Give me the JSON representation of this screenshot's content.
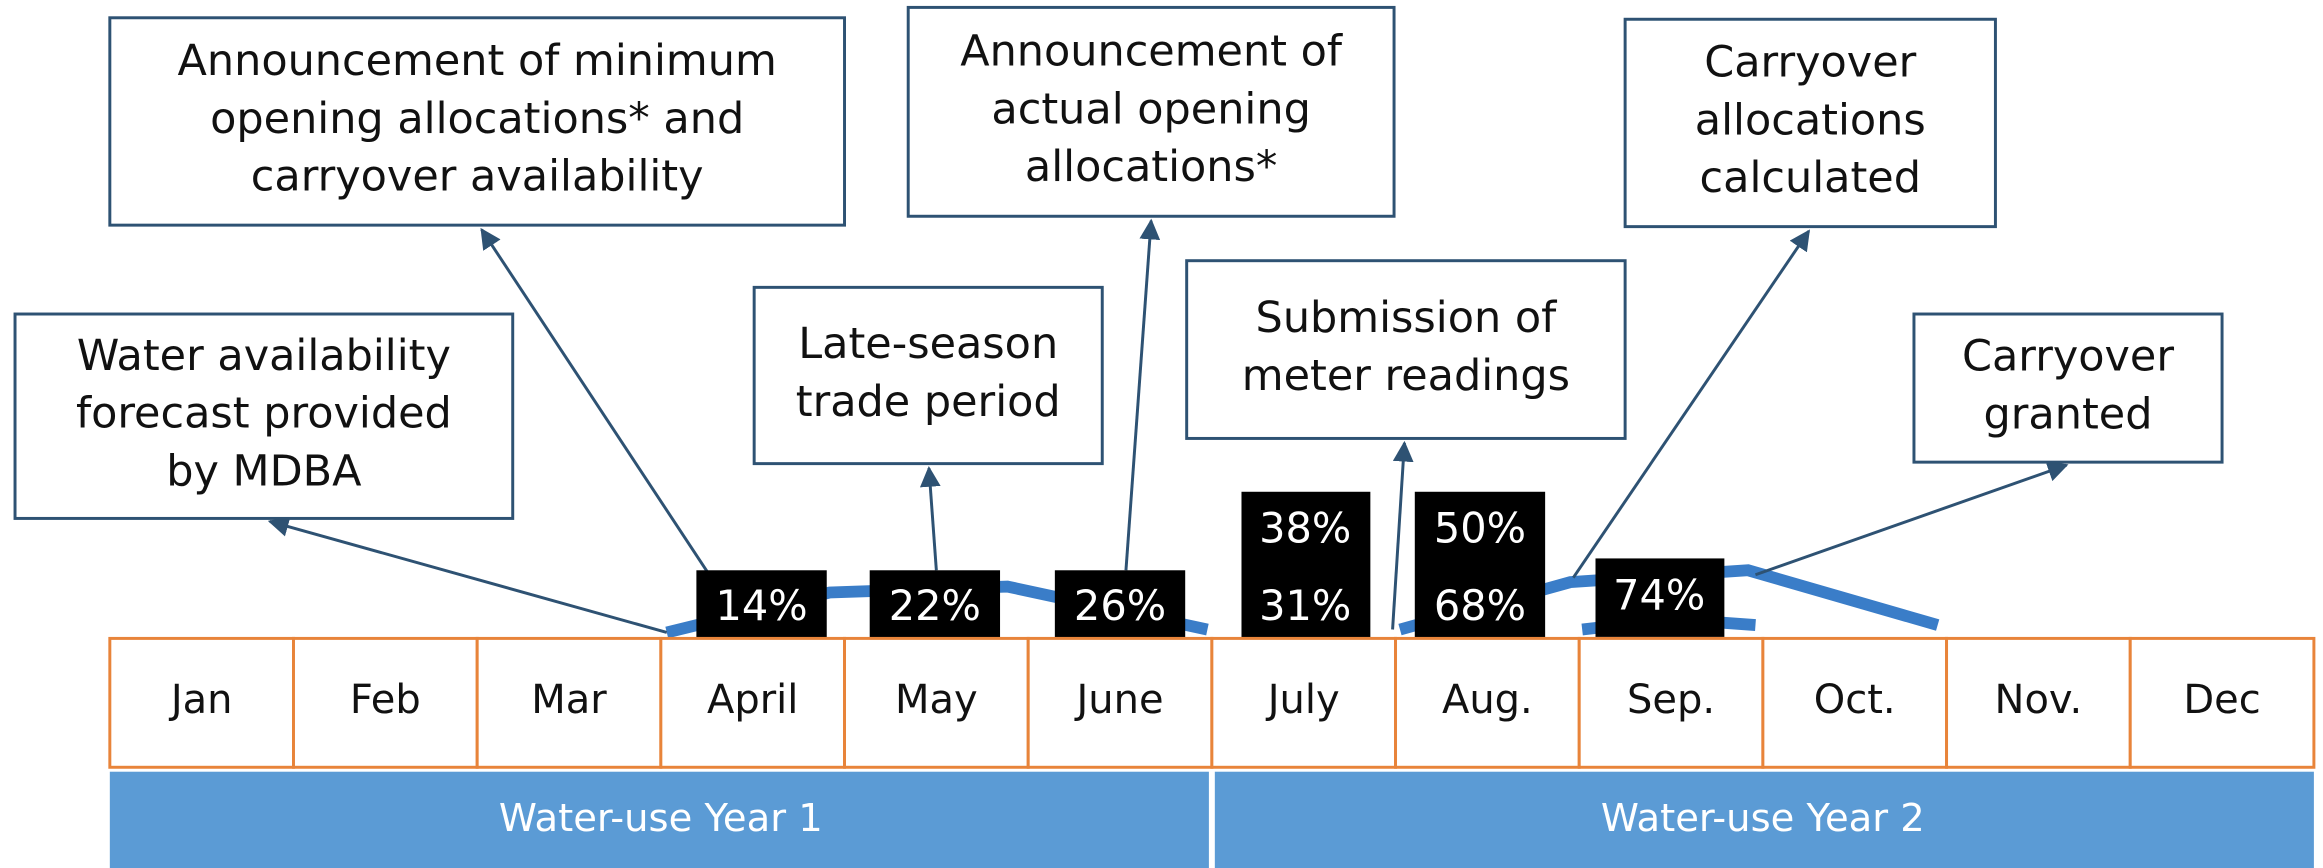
{
  "callouts": [
    {
      "lines": [
        "Water availability",
        "forecast provided",
        "by MDBA"
      ]
    },
    {
      "lines": [
        "Announcement of minimum",
        "opening allocations* and",
        "carryover availability"
      ]
    },
    {
      "lines": [
        "Late-season",
        "trade period"
      ]
    },
    {
      "lines": [
        "Announcement of",
        "actual opening",
        "allocations*"
      ]
    },
    {
      "lines": [
        "Submission of",
        "meter readings"
      ]
    },
    {
      "lines": [
        "Carryover",
        "allocations",
        "calculated"
      ]
    },
    {
      "lines": [
        "Carryover",
        "granted"
      ]
    }
  ],
  "percent_labels": [
    "14%",
    "22%",
    "26%",
    "38%",
    "31%",
    "50%",
    "68%",
    "74%"
  ],
  "months": [
    "Jan",
    "Feb",
    "Mar",
    "April",
    "May",
    "June",
    "July",
    "Aug.",
    "Sep.",
    "Oct.",
    "Nov.",
    "Dec"
  ],
  "years": [
    "Water-use Year 1",
    "Water-use Year 2"
  ]
}
